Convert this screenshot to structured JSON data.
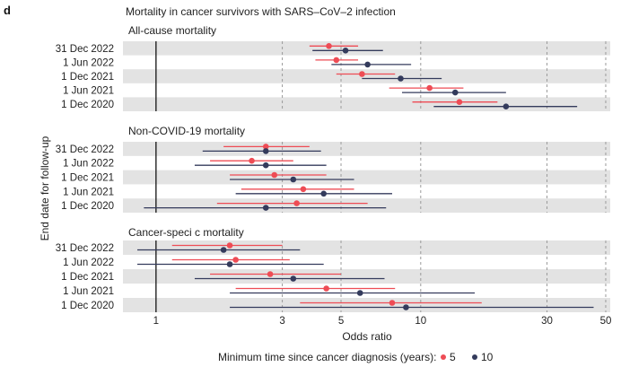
{
  "panel_letter": "d",
  "chart_data": {
    "type": "forest",
    "title": "Mortality in cancer survivors with SARS–CoV–2 infection",
    "xlabel": "Odds ratio",
    "ylabel": "End date for follow-up",
    "x_scale": "log",
    "xlim": [
      0.75,
      52
    ],
    "xticks": [
      1,
      3,
      5,
      10,
      30,
      50
    ],
    "xtick_labels": [
      "1",
      "3",
      "5",
      "10",
      "30",
      "50"
    ],
    "reference_line": 1,
    "legend": {
      "title": "Minimum time since cancer diagnosis (years):",
      "placement": "bottom",
      "entries": [
        {
          "label": "5",
          "color": "#ee4c55"
        },
        {
          "label": "10",
          "color": "#343b5c"
        }
      ]
    },
    "colors": {
      "five_years": "#ee4c55",
      "ten_years": "#343b5c",
      "stripe": "#e3e3e3",
      "grid": "#9a9a9a"
    },
    "panels": [
      {
        "title": "All-cause mortality",
        "categories": [
          "31 Dec 2022",
          "1 Jun 2022",
          "1 Dec 2021",
          "1 Jun 2021",
          "1 Dec 2020"
        ],
        "series": [
          {
            "name": "5",
            "or": [
              4.5,
              4.8,
              6.0,
              10.8,
              14.0
            ],
            "lower": [
              3.8,
              4.0,
              4.8,
              7.6,
              9.3
            ],
            "upper": [
              5.8,
              5.8,
              8.0,
              14.5,
              19.5
            ]
          },
          {
            "name": "10",
            "or": [
              5.2,
              6.3,
              8.4,
              13.5,
              21.0
            ],
            "lower": [
              3.9,
              4.6,
              6.0,
              8.5,
              11.2
            ],
            "upper": [
              7.2,
              9.2,
              12.0,
              21.0,
              39.0
            ]
          }
        ]
      },
      {
        "title": "Non-COVID-19 mortality",
        "categories": [
          "31 Dec 2022",
          "1 Jun 2022",
          "1 Dec 2021",
          "1 Jun 2021",
          "1 Dec 2020"
        ],
        "series": [
          {
            "name": "5",
            "or": [
              2.6,
              2.3,
              2.8,
              3.6,
              3.4
            ],
            "lower": [
              1.8,
              1.6,
              1.9,
              2.1,
              1.7
            ],
            "upper": [
              3.8,
              3.3,
              4.4,
              5.6,
              6.3
            ]
          },
          {
            "name": "10",
            "or": [
              2.6,
              2.6,
              3.3,
              4.3,
              2.6
            ],
            "lower": [
              1.5,
              1.4,
              1.9,
              2.0,
              0.9
            ],
            "upper": [
              4.2,
              4.4,
              5.6,
              7.8,
              7.4
            ]
          }
        ]
      },
      {
        "title": "Cancer-speci  c mortality",
        "categories": [
          "31 Dec 2022",
          "1 Jun 2022",
          "1 Dec 2021",
          "1 Jun 2021",
          "1 Dec 2020"
        ],
        "series": [
          {
            "name": "5",
            "or": [
              1.9,
              2.0,
              2.7,
              4.4,
              7.8
            ],
            "lower": [
              1.15,
              1.15,
              1.6,
              2.0,
              3.5
            ],
            "upper": [
              3.0,
              3.2,
              5.0,
              8.0,
              17.0
            ]
          },
          {
            "name": "10",
            "or": [
              1.8,
              1.9,
              3.3,
              5.9,
              8.8
            ],
            "lower": [
              0.85,
              0.85,
              1.4,
              1.9,
              1.9
            ],
            "upper": [
              3.5,
              4.3,
              7.3,
              16.0,
              45.0
            ]
          }
        ]
      }
    ]
  }
}
